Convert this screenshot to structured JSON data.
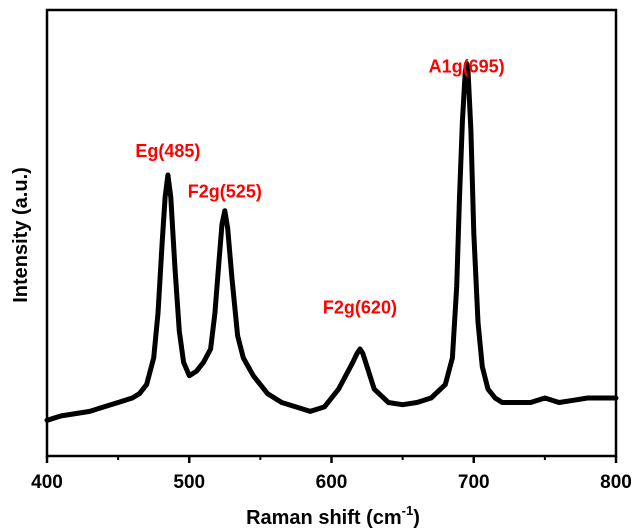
{
  "chart_data": {
    "type": "line",
    "title": "",
    "xlabel_main": "Raman shift (cm",
    "xlabel_sup": "-1",
    "xlabel_tail": ")",
    "ylabel": "Intensity (a.u.)",
    "xlim": [
      400,
      800
    ],
    "ylim": [
      0,
      100
    ],
    "x_ticks": [
      400,
      500,
      600,
      700,
      800
    ],
    "y_ticks_visible": false,
    "grid": false,
    "line_color": "#000000",
    "annotation_color": "#ff0000",
    "annotations": [
      {
        "text": "Eg(485)",
        "x": 485,
        "y": 67
      },
      {
        "text": "F2g(525)",
        "x": 525,
        "y": 58
      },
      {
        "text": "F2g(620)",
        "x": 620,
        "y": 32
      },
      {
        "text": "A1g(695)",
        "x": 695,
        "y": 86
      }
    ],
    "series": [
      {
        "x": [
          400,
          410,
          420,
          430,
          440,
          450,
          460,
          465,
          470,
          475,
          478,
          481,
          483,
          485,
          487,
          490,
          493,
          496,
          500,
          505,
          510,
          515,
          518,
          521,
          523,
          525,
          527,
          530,
          534,
          538,
          545,
          555,
          565,
          575,
          585,
          595,
          600,
          605,
          610,
          615,
          618,
          620,
          622,
          625,
          630,
          640,
          650,
          660,
          670,
          680,
          685,
          688,
          690,
          692,
          694,
          695,
          696,
          698,
          700,
          703,
          706,
          710,
          715,
          720,
          730,
          740,
          750,
          760,
          770,
          780,
          790,
          800
        ],
        "y": [
          8,
          9,
          9.5,
          10,
          11,
          12,
          13,
          14,
          16,
          22,
          32,
          48,
          58,
          63,
          58,
          42,
          28,
          21,
          18,
          19,
          21,
          24,
          32,
          44,
          52,
          55,
          51,
          40,
          27,
          22,
          18,
          14,
          12,
          11,
          10,
          11,
          13,
          15,
          18,
          21,
          23,
          24,
          23,
          20,
          15,
          12,
          11.5,
          12,
          13,
          16,
          22,
          38,
          58,
          75,
          86,
          88,
          86,
          73,
          50,
          30,
          20,
          15,
          13,
          12,
          12,
          12,
          13,
          12,
          12.5,
          13,
          13,
          13
        ]
      }
    ]
  }
}
